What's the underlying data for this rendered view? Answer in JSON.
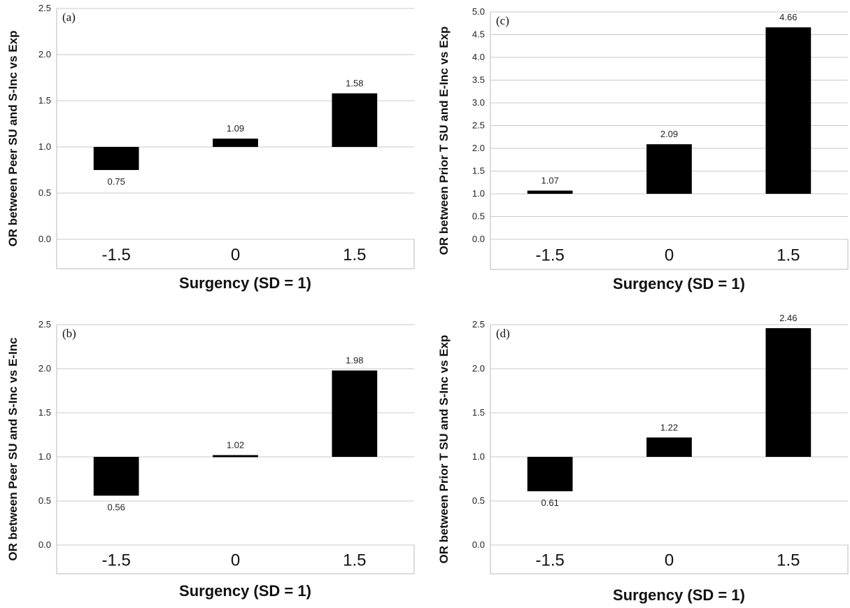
{
  "chart_data": [
    {
      "id": "a",
      "type": "bar",
      "panel_label": "(a)",
      "categories": [
        "-1.5",
        "0",
        "1.5"
      ],
      "values": [
        0.75,
        1.09,
        1.58
      ],
      "value_labels": [
        "0.75",
        "1.09",
        "1.58"
      ],
      "baseline": 1.0,
      "ylim": [
        0,
        2.5
      ],
      "yticks": [
        "0.0",
        "0.5",
        "1.0",
        "1.5",
        "2.0",
        "2.5"
      ],
      "xlabel": "Surgency (SD = 1)",
      "ylabel": "OR between Peer SU and S-Inc vs Exp",
      "grid": true,
      "bar_color": "#000000"
    },
    {
      "id": "b",
      "type": "bar",
      "panel_label": "(b)",
      "categories": [
        "-1.5",
        "0",
        "1.5"
      ],
      "values": [
        0.56,
        1.02,
        1.98
      ],
      "value_labels": [
        "0.56",
        "1.02",
        "1.98"
      ],
      "baseline": 1.0,
      "ylim": [
        0,
        2.5
      ],
      "yticks": [
        "0.0",
        "0.5",
        "1.0",
        "1.5",
        "2.0",
        "2.5"
      ],
      "xlabel": "Surgency (SD = 1)",
      "ylabel": "OR between Peer SU and S-Inc vs E-Inc",
      "grid": true,
      "bar_color": "#000000"
    },
    {
      "id": "c",
      "type": "bar",
      "panel_label": "(c)",
      "categories": [
        "-1.5",
        "0",
        "1.5"
      ],
      "values": [
        1.07,
        2.09,
        4.66
      ],
      "value_labels": [
        "1.07",
        "2.09",
        "4.66"
      ],
      "baseline": 1.0,
      "ylim": [
        0,
        5.0
      ],
      "yticks": [
        "0.0",
        "0.5",
        "1.0",
        "1.5",
        "2.0",
        "2.5",
        "3.0",
        "3.5",
        "4.0",
        "4.5",
        "5.0"
      ],
      "xlabel": "Surgency (SD = 1)",
      "ylabel": "OR between Prior T SU and E-Inc vs Exp",
      "grid": true,
      "bar_color": "#000000"
    },
    {
      "id": "d",
      "type": "bar",
      "panel_label": "(d)",
      "categories": [
        "-1.5",
        "0",
        "1.5"
      ],
      "values": [
        0.61,
        1.22,
        2.46
      ],
      "value_labels": [
        "0.61",
        "1.22",
        "2.46"
      ],
      "baseline": 1.0,
      "ylim": [
        0,
        2.5
      ],
      "yticks": [
        "0.0",
        "0.5",
        "1.0",
        "1.5",
        "2.0",
        "2.5"
      ],
      "xlabel": "Surgency (SD = 1)",
      "ylabel": "OR between Prior T SU and S-Inc vs Exp",
      "grid": true,
      "bar_color": "#000000"
    }
  ]
}
